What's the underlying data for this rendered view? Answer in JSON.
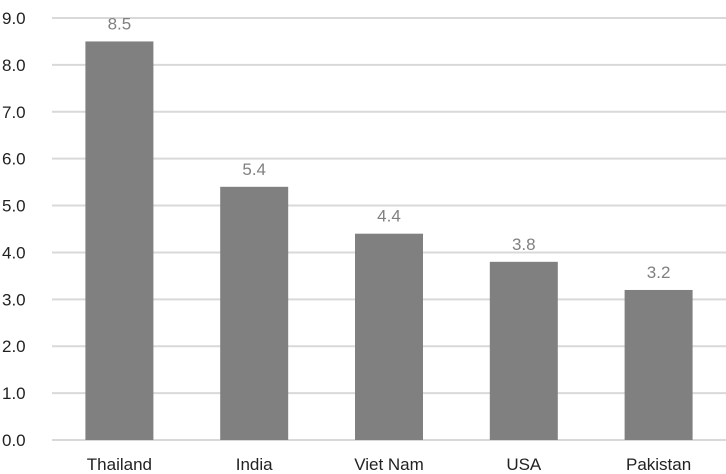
{
  "chart_data": {
    "type": "bar",
    "categories": [
      "Thailand",
      "India",
      "Viet Nam",
      "USA",
      "Pakistan"
    ],
    "values": [
      8.5,
      5.4,
      4.4,
      3.8,
      3.2
    ],
    "data_labels": [
      "8.5",
      "5.4",
      "4.4",
      "3.8",
      "3.2"
    ],
    "y_ticks": [
      "0.0",
      "1.0",
      "2.0",
      "3.0",
      "4.0",
      "5.0",
      "6.0",
      "7.0",
      "8.0",
      "9.0"
    ],
    "ylim": [
      0,
      9
    ],
    "title": "",
    "xlabel": "",
    "ylabel": "",
    "grid": true,
    "legend": "none",
    "colors": {
      "bar": "#808080",
      "grid": "#d9d9d9",
      "data_label": "#808080",
      "axis_text": "#222222"
    }
  }
}
